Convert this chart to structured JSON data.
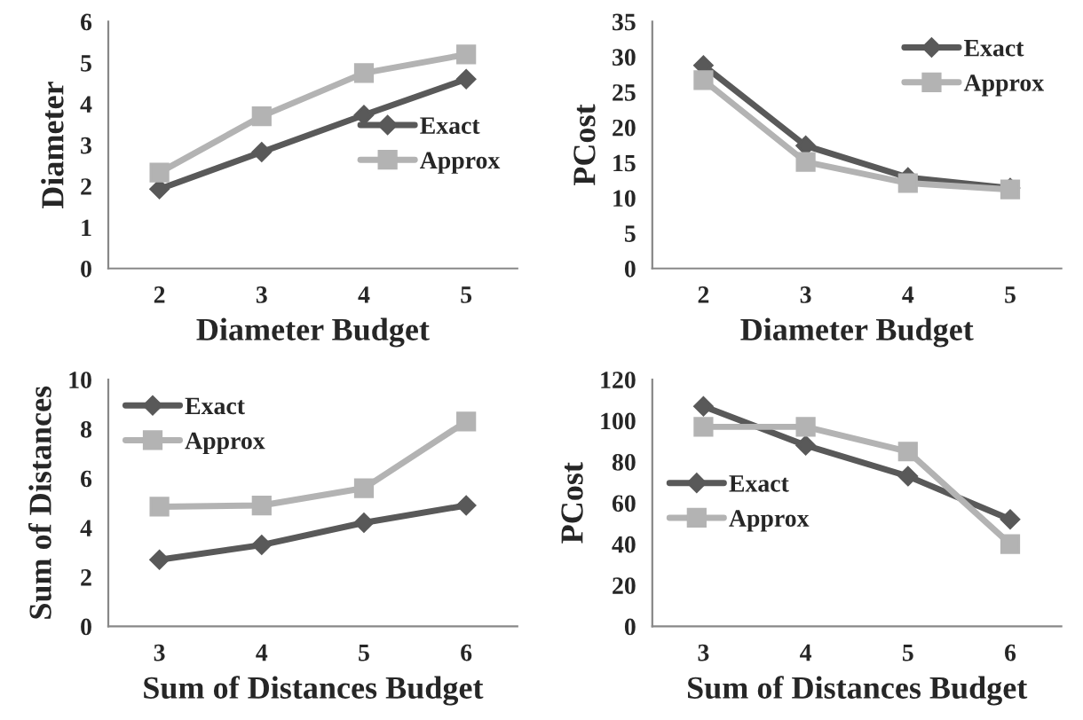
{
  "chart_data": [
    {
      "type": "line",
      "xlabel": "Diameter Budget",
      "ylabel": "Diameter",
      "categories": [
        "2",
        "3",
        "4",
        "5"
      ],
      "ylim": [
        0,
        6
      ],
      "yticks": [
        0,
        1,
        2,
        3,
        4,
        5,
        6
      ],
      "grid": false,
      "legend": "right",
      "series": [
        {
          "name": "Exact",
          "color": "#595959",
          "marker": "diamond",
          "values": [
            1.93,
            2.83,
            3.73,
            4.6
          ]
        },
        {
          "name": "Approx",
          "color": "#b3b3b3",
          "marker": "square",
          "values": [
            2.33,
            3.7,
            4.75,
            5.2
          ]
        }
      ]
    },
    {
      "type": "line",
      "xlabel": "Diameter Budget",
      "ylabel": "PCost",
      "categories": [
        "2",
        "3",
        "4",
        "5"
      ],
      "ylim": [
        0,
        35
      ],
      "yticks": [
        0,
        5,
        10,
        15,
        20,
        25,
        30,
        35
      ],
      "grid": false,
      "legend": "top right",
      "series": [
        {
          "name": "Exact",
          "color": "#595959",
          "marker": "diamond",
          "values": [
            28.8,
            17.4,
            12.9,
            11.4
          ]
        },
        {
          "name": "Approx",
          "color": "#b3b3b3",
          "marker": "square",
          "values": [
            26.7,
            15.1,
            12.1,
            11.2
          ]
        }
      ]
    },
    {
      "type": "line",
      "xlabel": "Sum of Distances Budget",
      "ylabel": "Sum of Distances",
      "categories": [
        "3",
        "4",
        "5",
        "6"
      ],
      "ylim": [
        0,
        10
      ],
      "yticks": [
        0,
        2,
        4,
        6,
        8,
        10
      ],
      "grid": false,
      "legend": "top left",
      "series": [
        {
          "name": "Exact",
          "color": "#595959",
          "marker": "diamond",
          "values": [
            2.7,
            3.3,
            4.2,
            4.9
          ]
        },
        {
          "name": "Approx",
          "color": "#b3b3b3",
          "marker": "square",
          "values": [
            4.85,
            4.9,
            5.6,
            8.3
          ]
        }
      ]
    },
    {
      "type": "line",
      "xlabel": "Sum of Distances Budget",
      "ylabel": "PCost",
      "categories": [
        "3",
        "4",
        "5",
        "6"
      ],
      "ylim": [
        0,
        120
      ],
      "yticks": [
        0,
        20,
        40,
        60,
        80,
        100,
        120
      ],
      "grid": false,
      "legend": "left",
      "series": [
        {
          "name": "Exact",
          "color": "#595959",
          "marker": "diamond",
          "values": [
            107,
            88,
            73,
            52
          ]
        },
        {
          "name": "Approx",
          "color": "#b3b3b3",
          "marker": "square",
          "values": [
            97,
            97,
            85,
            40
          ]
        }
      ]
    }
  ]
}
